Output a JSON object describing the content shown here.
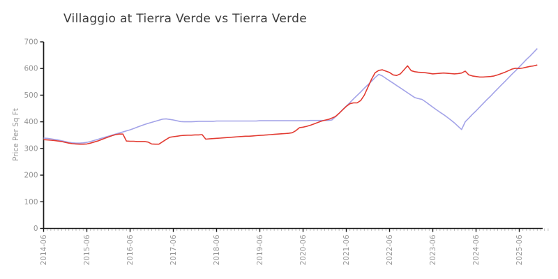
{
  "chart_data": {
    "type": "line",
    "title": "Villaggio at Tierra Verde vs Tierra Verde",
    "xlabel": "",
    "ylabel": "Price Per Sq Ft",
    "ylim": [
      0,
      700
    ],
    "y_ticks": [
      0,
      100,
      200,
      300,
      400,
      500,
      600,
      700
    ],
    "x_tick_labels": [
      "2014-06",
      "2015-06",
      "2016-06",
      "2017-06",
      "2018-06",
      "2019-06",
      "2020-06",
      "2021-06",
      "2022-06",
      "2023-06",
      "2024-06",
      "2025-06"
    ],
    "x_start_month": "2014-06",
    "x_interval": "monthly",
    "grid": false,
    "legend_position": "none",
    "series": [
      {
        "name": "Villaggio at Tierra Verde",
        "color": "#e23b32",
        "values": [
          333,
          332,
          331,
          330,
          328,
          326,
          323,
          320,
          318,
          317,
          316,
          316,
          317,
          320,
          324,
          328,
          333,
          338,
          343,
          348,
          352,
          354,
          354,
          328,
          327,
          327,
          326,
          326,
          326,
          324,
          317,
          316,
          316,
          325,
          334,
          342,
          344,
          346,
          348,
          349,
          350,
          350,
          351,
          351,
          352,
          335,
          336,
          337,
          338,
          339,
          340,
          341,
          342,
          343,
          344,
          345,
          346,
          346,
          347,
          348,
          349,
          350,
          351,
          352,
          353,
          354,
          355,
          356,
          357,
          359,
          367,
          378,
          380,
          383,
          387,
          392,
          397,
          402,
          406,
          409,
          414,
          420,
          432,
          445,
          458,
          468,
          471,
          471,
          480,
          500,
          530,
          560,
          584,
          593,
          595,
          590,
          585,
          576,
          574,
          580,
          595,
          610,
          592,
          588,
          586,
          585,
          584,
          582,
          580,
          581,
          582,
          583,
          582,
          581,
          580,
          581,
          583,
          590,
          576,
          572,
          570,
          568,
          568,
          569,
          570,
          572,
          576,
          581,
          586,
          592,
          598,
          601,
          600,
          602,
          605,
          608,
          610,
          613
        ]
      },
      {
        "name": "Tierra Verde",
        "color": "#a3a3e8",
        "values": [
          339,
          338,
          336,
          334,
          332,
          329,
          326,
          323,
          321,
          320,
          320,
          321,
          323,
          326,
          330,
          334,
          338,
          342,
          346,
          350,
          354,
          358,
          362,
          366,
          370,
          375,
          380,
          385,
          390,
          394,
          398,
          402,
          406,
          410,
          411,
          409,
          407,
          404,
          401,
          400,
          400,
          400,
          401,
          402,
          402,
          402,
          402,
          402,
          403,
          403,
          403,
          403,
          403,
          403,
          403,
          403,
          403,
          403,
          403,
          403,
          404,
          404,
          404,
          404,
          404,
          404,
          404,
          404,
          404,
          404,
          404,
          404,
          404,
          404,
          405,
          405,
          405,
          405,
          405,
          405,
          407,
          419,
          432,
          446,
          459,
          472,
          486,
          499,
          512,
          526,
          539,
          552,
          566,
          578,
          572,
          563,
          554,
          545,
          536,
          527,
          518,
          509,
          500,
          491,
          487,
          484,
          475,
          465,
          455,
          445,
          436,
          427,
          417,
          407,
          396,
          383,
          371,
          400,
          414,
          428,
          441,
          455,
          469,
          483,
          496,
          510,
          524,
          538,
          551,
          565,
          579,
          592,
          606,
          620,
          634,
          647,
          661,
          675
        ]
      }
    ],
    "axis_color": "#1a1a1a",
    "tick_label_color": "#969696",
    "minor_tick_color": "#c2c2c2"
  }
}
